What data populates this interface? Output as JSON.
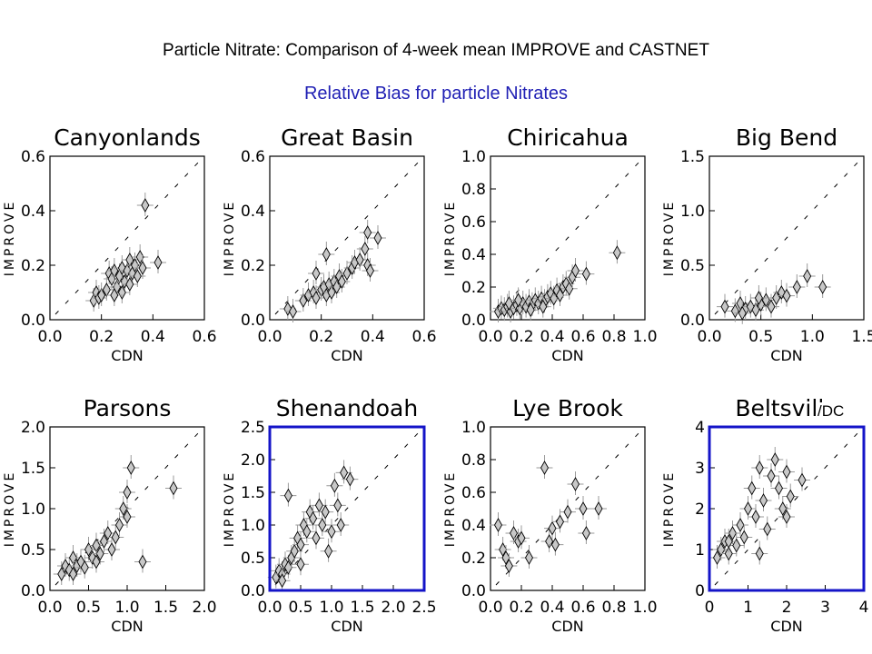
{
  "header": {
    "title": "Particle Nitrate:  Comparison of 4-week mean IMPROVE and CASTNET",
    "subtitle": "Relative Bias for particle Nitrates",
    "subtitle_color": "#1f1fb4"
  },
  "annotation": {
    "dc_label": "/DC"
  },
  "style": {
    "marker_fill": "#c8c8c8",
    "marker_stroke": "#000000",
    "errorbar_color": "#9a9a9a",
    "highlight_color": "#1414c8"
  },
  "chart_data": [
    {
      "type": "scatter",
      "title": "Canyonlands",
      "xlabel": "CDN",
      "ylabel": "IMPROVE",
      "xlim": [
        0,
        0.6
      ],
      "ylim": [
        0,
        0.6
      ],
      "xticks": [
        "0.0",
        "0.2",
        "0.4",
        "0.6"
      ],
      "yticks": [
        "0.0",
        "0.2",
        "0.4",
        "0.6"
      ],
      "reference_line": "1:1",
      "highlighted": false,
      "points": [
        [
          0.17,
          0.07
        ],
        [
          0.18,
          0.1
        ],
        [
          0.19,
          0.08
        ],
        [
          0.2,
          0.09
        ],
        [
          0.22,
          0.11
        ],
        [
          0.23,
          0.17
        ],
        [
          0.24,
          0.15
        ],
        [
          0.25,
          0.18
        ],
        [
          0.26,
          0.12
        ],
        [
          0.27,
          0.16
        ],
        [
          0.28,
          0.19
        ],
        [
          0.29,
          0.14
        ],
        [
          0.3,
          0.18
        ],
        [
          0.31,
          0.22
        ],
        [
          0.32,
          0.17
        ],
        [
          0.33,
          0.2
        ],
        [
          0.34,
          0.16
        ],
        [
          0.35,
          0.23
        ],
        [
          0.36,
          0.19
        ],
        [
          0.37,
          0.42
        ],
        [
          0.42,
          0.21
        ],
        [
          0.28,
          0.1
        ],
        [
          0.25,
          0.09
        ],
        [
          0.31,
          0.13
        ]
      ]
    },
    {
      "type": "scatter",
      "title": "Great Basin",
      "xlabel": "CDN",
      "ylabel": "IMPROVE",
      "xlim": [
        0,
        0.6
      ],
      "ylim": [
        0,
        0.6
      ],
      "xticks": [
        "0.0",
        "0.2",
        "0.4",
        "0.6"
      ],
      "yticks": [
        "0.0",
        "0.2",
        "0.4",
        "0.6"
      ],
      "reference_line": "1:1",
      "highlighted": false,
      "points": [
        [
          0.07,
          0.04
        ],
        [
          0.09,
          0.03
        ],
        [
          0.13,
          0.07
        ],
        [
          0.15,
          0.09
        ],
        [
          0.17,
          0.1
        ],
        [
          0.18,
          0.08
        ],
        [
          0.2,
          0.11
        ],
        [
          0.21,
          0.12
        ],
        [
          0.22,
          0.09
        ],
        [
          0.23,
          0.13
        ],
        [
          0.24,
          0.1
        ],
        [
          0.25,
          0.14
        ],
        [
          0.26,
          0.12
        ],
        [
          0.27,
          0.16
        ],
        [
          0.28,
          0.14
        ],
        [
          0.3,
          0.17
        ],
        [
          0.32,
          0.19
        ],
        [
          0.33,
          0.21
        ],
        [
          0.35,
          0.22
        ],
        [
          0.37,
          0.26
        ],
        [
          0.38,
          0.2
        ],
        [
          0.39,
          0.18
        ],
        [
          0.42,
          0.3
        ],
        [
          0.38,
          0.32
        ],
        [
          0.22,
          0.24
        ],
        [
          0.18,
          0.17
        ]
      ]
    },
    {
      "type": "scatter",
      "title": "Chiricahua",
      "xlabel": "CDN",
      "ylabel": "IMPROVE",
      "xlim": [
        0,
        1.0
      ],
      "ylim": [
        0,
        1.0
      ],
      "xticks": [
        "0.0",
        "0.2",
        "0.4",
        "0.6",
        "0.8",
        "1.0"
      ],
      "yticks": [
        "0.0",
        "0.2",
        "0.4",
        "0.6",
        "0.8",
        "1.0"
      ],
      "reference_line": "1:1",
      "highlighted": false,
      "points": [
        [
          0.05,
          0.05
        ],
        [
          0.07,
          0.07
        ],
        [
          0.09,
          0.06
        ],
        [
          0.11,
          0.08
        ],
        [
          0.13,
          0.05
        ],
        [
          0.15,
          0.07
        ],
        [
          0.17,
          0.09
        ],
        [
          0.19,
          0.07
        ],
        [
          0.21,
          0.1
        ],
        [
          0.23,
          0.08
        ],
        [
          0.25,
          0.11
        ],
        [
          0.27,
          0.09
        ],
        [
          0.29,
          0.12
        ],
        [
          0.31,
          0.1
        ],
        [
          0.33,
          0.13
        ],
        [
          0.35,
          0.11
        ],
        [
          0.37,
          0.14
        ],
        [
          0.39,
          0.16
        ],
        [
          0.41,
          0.13
        ],
        [
          0.43,
          0.18
        ],
        [
          0.45,
          0.15
        ],
        [
          0.47,
          0.2
        ],
        [
          0.49,
          0.22
        ],
        [
          0.51,
          0.19
        ],
        [
          0.53,
          0.26
        ],
        [
          0.55,
          0.3
        ],
        [
          0.62,
          0.28
        ],
        [
          0.82,
          0.41
        ],
        [
          0.12,
          0.1
        ],
        [
          0.18,
          0.12
        ],
        [
          0.26,
          0.06
        ],
        [
          0.34,
          0.08
        ]
      ]
    },
    {
      "type": "scatter",
      "title": "Big Bend",
      "xlabel": "CDN",
      "ylabel": "IMPROVE",
      "xlim": [
        0,
        1.5
      ],
      "ylim": [
        0,
        1.5
      ],
      "xticks": [
        "0.0",
        "0.5",
        "1.0",
        "1.5"
      ],
      "yticks": [
        "0.0",
        "0.5",
        "1.0",
        "1.5"
      ],
      "reference_line": "1:1",
      "highlighted": false,
      "points": [
        [
          0.15,
          0.12
        ],
        [
          0.25,
          0.08
        ],
        [
          0.3,
          0.15
        ],
        [
          0.35,
          0.1
        ],
        [
          0.4,
          0.12
        ],
        [
          0.45,
          0.09
        ],
        [
          0.5,
          0.14
        ],
        [
          0.55,
          0.18
        ],
        [
          0.6,
          0.12
        ],
        [
          0.65,
          0.2
        ],
        [
          0.7,
          0.25
        ],
        [
          0.75,
          0.22
        ],
        [
          0.85,
          0.3
        ],
        [
          0.95,
          0.4
        ],
        [
          1.1,
          0.3
        ],
        [
          0.32,
          0.06
        ],
        [
          0.48,
          0.2
        ]
      ]
    },
    {
      "type": "scatter",
      "title": "Parsons",
      "xlabel": "CDN",
      "ylabel": "IMPROVE",
      "xlim": [
        0,
        2.0
      ],
      "ylim": [
        0,
        2.0
      ],
      "xticks": [
        "0.0",
        "0.5",
        "1.0",
        "1.5",
        "2.0"
      ],
      "yticks": [
        "0.0",
        "0.5",
        "1.0",
        "1.5",
        "2.0"
      ],
      "reference_line": "1:1",
      "highlighted": false,
      "points": [
        [
          0.15,
          0.2
        ],
        [
          0.2,
          0.3
        ],
        [
          0.25,
          0.25
        ],
        [
          0.3,
          0.4
        ],
        [
          0.35,
          0.3
        ],
        [
          0.4,
          0.35
        ],
        [
          0.45,
          0.28
        ],
        [
          0.5,
          0.5
        ],
        [
          0.55,
          0.4
        ],
        [
          0.6,
          0.55
        ],
        [
          0.65,
          0.45
        ],
        [
          0.7,
          0.6
        ],
        [
          0.75,
          0.7
        ],
        [
          0.8,
          0.5
        ],
        [
          0.85,
          0.65
        ],
        [
          0.9,
          0.8
        ],
        [
          0.95,
          1.0
        ],
        [
          1.0,
          1.2
        ],
        [
          1.05,
          1.5
        ],
        [
          1.0,
          0.9
        ],
        [
          1.2,
          0.35
        ],
        [
          1.6,
          1.25
        ],
        [
          0.3,
          0.2
        ],
        [
          0.6,
          0.35
        ]
      ]
    },
    {
      "type": "scatter",
      "title": "Shenandoah",
      "xlabel": "CDN",
      "ylabel": "IMPROVE",
      "xlim": [
        0,
        2.5
      ],
      "ylim": [
        0,
        2.5
      ],
      "xticks": [
        "0.0",
        "0.5",
        "1.0",
        "1.5",
        "2.0",
        "2.5"
      ],
      "yticks": [
        "0.0",
        "0.5",
        "1.0",
        "1.5",
        "2.0",
        "2.5"
      ],
      "reference_line": "1:1",
      "highlighted": true,
      "points": [
        [
          0.1,
          0.2
        ],
        [
          0.15,
          0.3
        ],
        [
          0.2,
          0.25
        ],
        [
          0.25,
          0.4
        ],
        [
          0.3,
          0.35
        ],
        [
          0.35,
          0.5
        ],
        [
          0.4,
          0.6
        ],
        [
          0.45,
          0.8
        ],
        [
          0.5,
          0.7
        ],
        [
          0.55,
          1.0
        ],
        [
          0.6,
          0.9
        ],
        [
          0.65,
          1.2
        ],
        [
          0.7,
          1.1
        ],
        [
          0.75,
          0.8
        ],
        [
          0.8,
          1.3
        ],
        [
          0.85,
          1.0
        ],
        [
          0.9,
          1.2
        ],
        [
          0.95,
          0.6
        ],
        [
          1.0,
          0.9
        ],
        [
          1.05,
          1.6
        ],
        [
          1.1,
          1.3
        ],
        [
          1.15,
          1.0
        ],
        [
          1.2,
          1.8
        ],
        [
          1.3,
          1.7
        ],
        [
          0.3,
          1.45
        ],
        [
          0.2,
          0.15
        ],
        [
          0.5,
          0.4
        ]
      ]
    },
    {
      "type": "scatter",
      "title": "Lye Brook",
      "xlabel": "CDN",
      "ylabel": "IMPROVE",
      "xlim": [
        0,
        1.0
      ],
      "ylim": [
        0,
        1.0
      ],
      "xticks": [
        "0.0",
        "0.2",
        "0.4",
        "0.6",
        "0.8",
        "1.0"
      ],
      "yticks": [
        "0.0",
        "0.2",
        "0.4",
        "0.6",
        "0.8",
        "1.0"
      ],
      "reference_line": "1:1",
      "highlighted": false,
      "points": [
        [
          0.05,
          0.4
        ],
        [
          0.08,
          0.25
        ],
        [
          0.1,
          0.2
        ],
        [
          0.12,
          0.15
        ],
        [
          0.15,
          0.35
        ],
        [
          0.18,
          0.3
        ],
        [
          0.2,
          0.32
        ],
        [
          0.25,
          0.2
        ],
        [
          0.35,
          0.75
        ],
        [
          0.38,
          0.3
        ],
        [
          0.4,
          0.38
        ],
        [
          0.45,
          0.42
        ],
        [
          0.5,
          0.48
        ],
        [
          0.55,
          0.65
        ],
        [
          0.6,
          0.5
        ],
        [
          0.62,
          0.35
        ],
        [
          0.7,
          0.5
        ],
        [
          0.42,
          0.28
        ]
      ]
    },
    {
      "type": "scatter",
      "title": "Beltsville",
      "xlabel": "CDN",
      "ylabel": "IMPROVE",
      "xlim": [
        0,
        4
      ],
      "ylim": [
        0,
        4
      ],
      "xticks": [
        "0",
        "1",
        "2",
        "3",
        "4"
      ],
      "yticks": [
        "0",
        "1",
        "2",
        "3",
        "4"
      ],
      "reference_line": "1:1",
      "highlighted": true,
      "points": [
        [
          0.2,
          0.8
        ],
        [
          0.3,
          1.0
        ],
        [
          0.4,
          1.2
        ],
        [
          0.5,
          0.9
        ],
        [
          0.6,
          1.4
        ],
        [
          0.7,
          1.1
        ],
        [
          0.8,
          1.6
        ],
        [
          0.9,
          1.3
        ],
        [
          1.0,
          2.0
        ],
        [
          1.1,
          2.5
        ],
        [
          1.2,
          1.8
        ],
        [
          1.3,
          3.0
        ],
        [
          1.4,
          2.2
        ],
        [
          1.5,
          1.5
        ],
        [
          1.6,
          2.8
        ],
        [
          1.7,
          3.2
        ],
        [
          1.8,
          2.5
        ],
        [
          1.9,
          2.0
        ],
        [
          2.0,
          2.9
        ],
        [
          2.1,
          2.3
        ],
        [
          2.4,
          2.7
        ],
        [
          0.5,
          1.2
        ],
        [
          1.3,
          0.9
        ],
        [
          2.0,
          1.8
        ]
      ]
    }
  ]
}
